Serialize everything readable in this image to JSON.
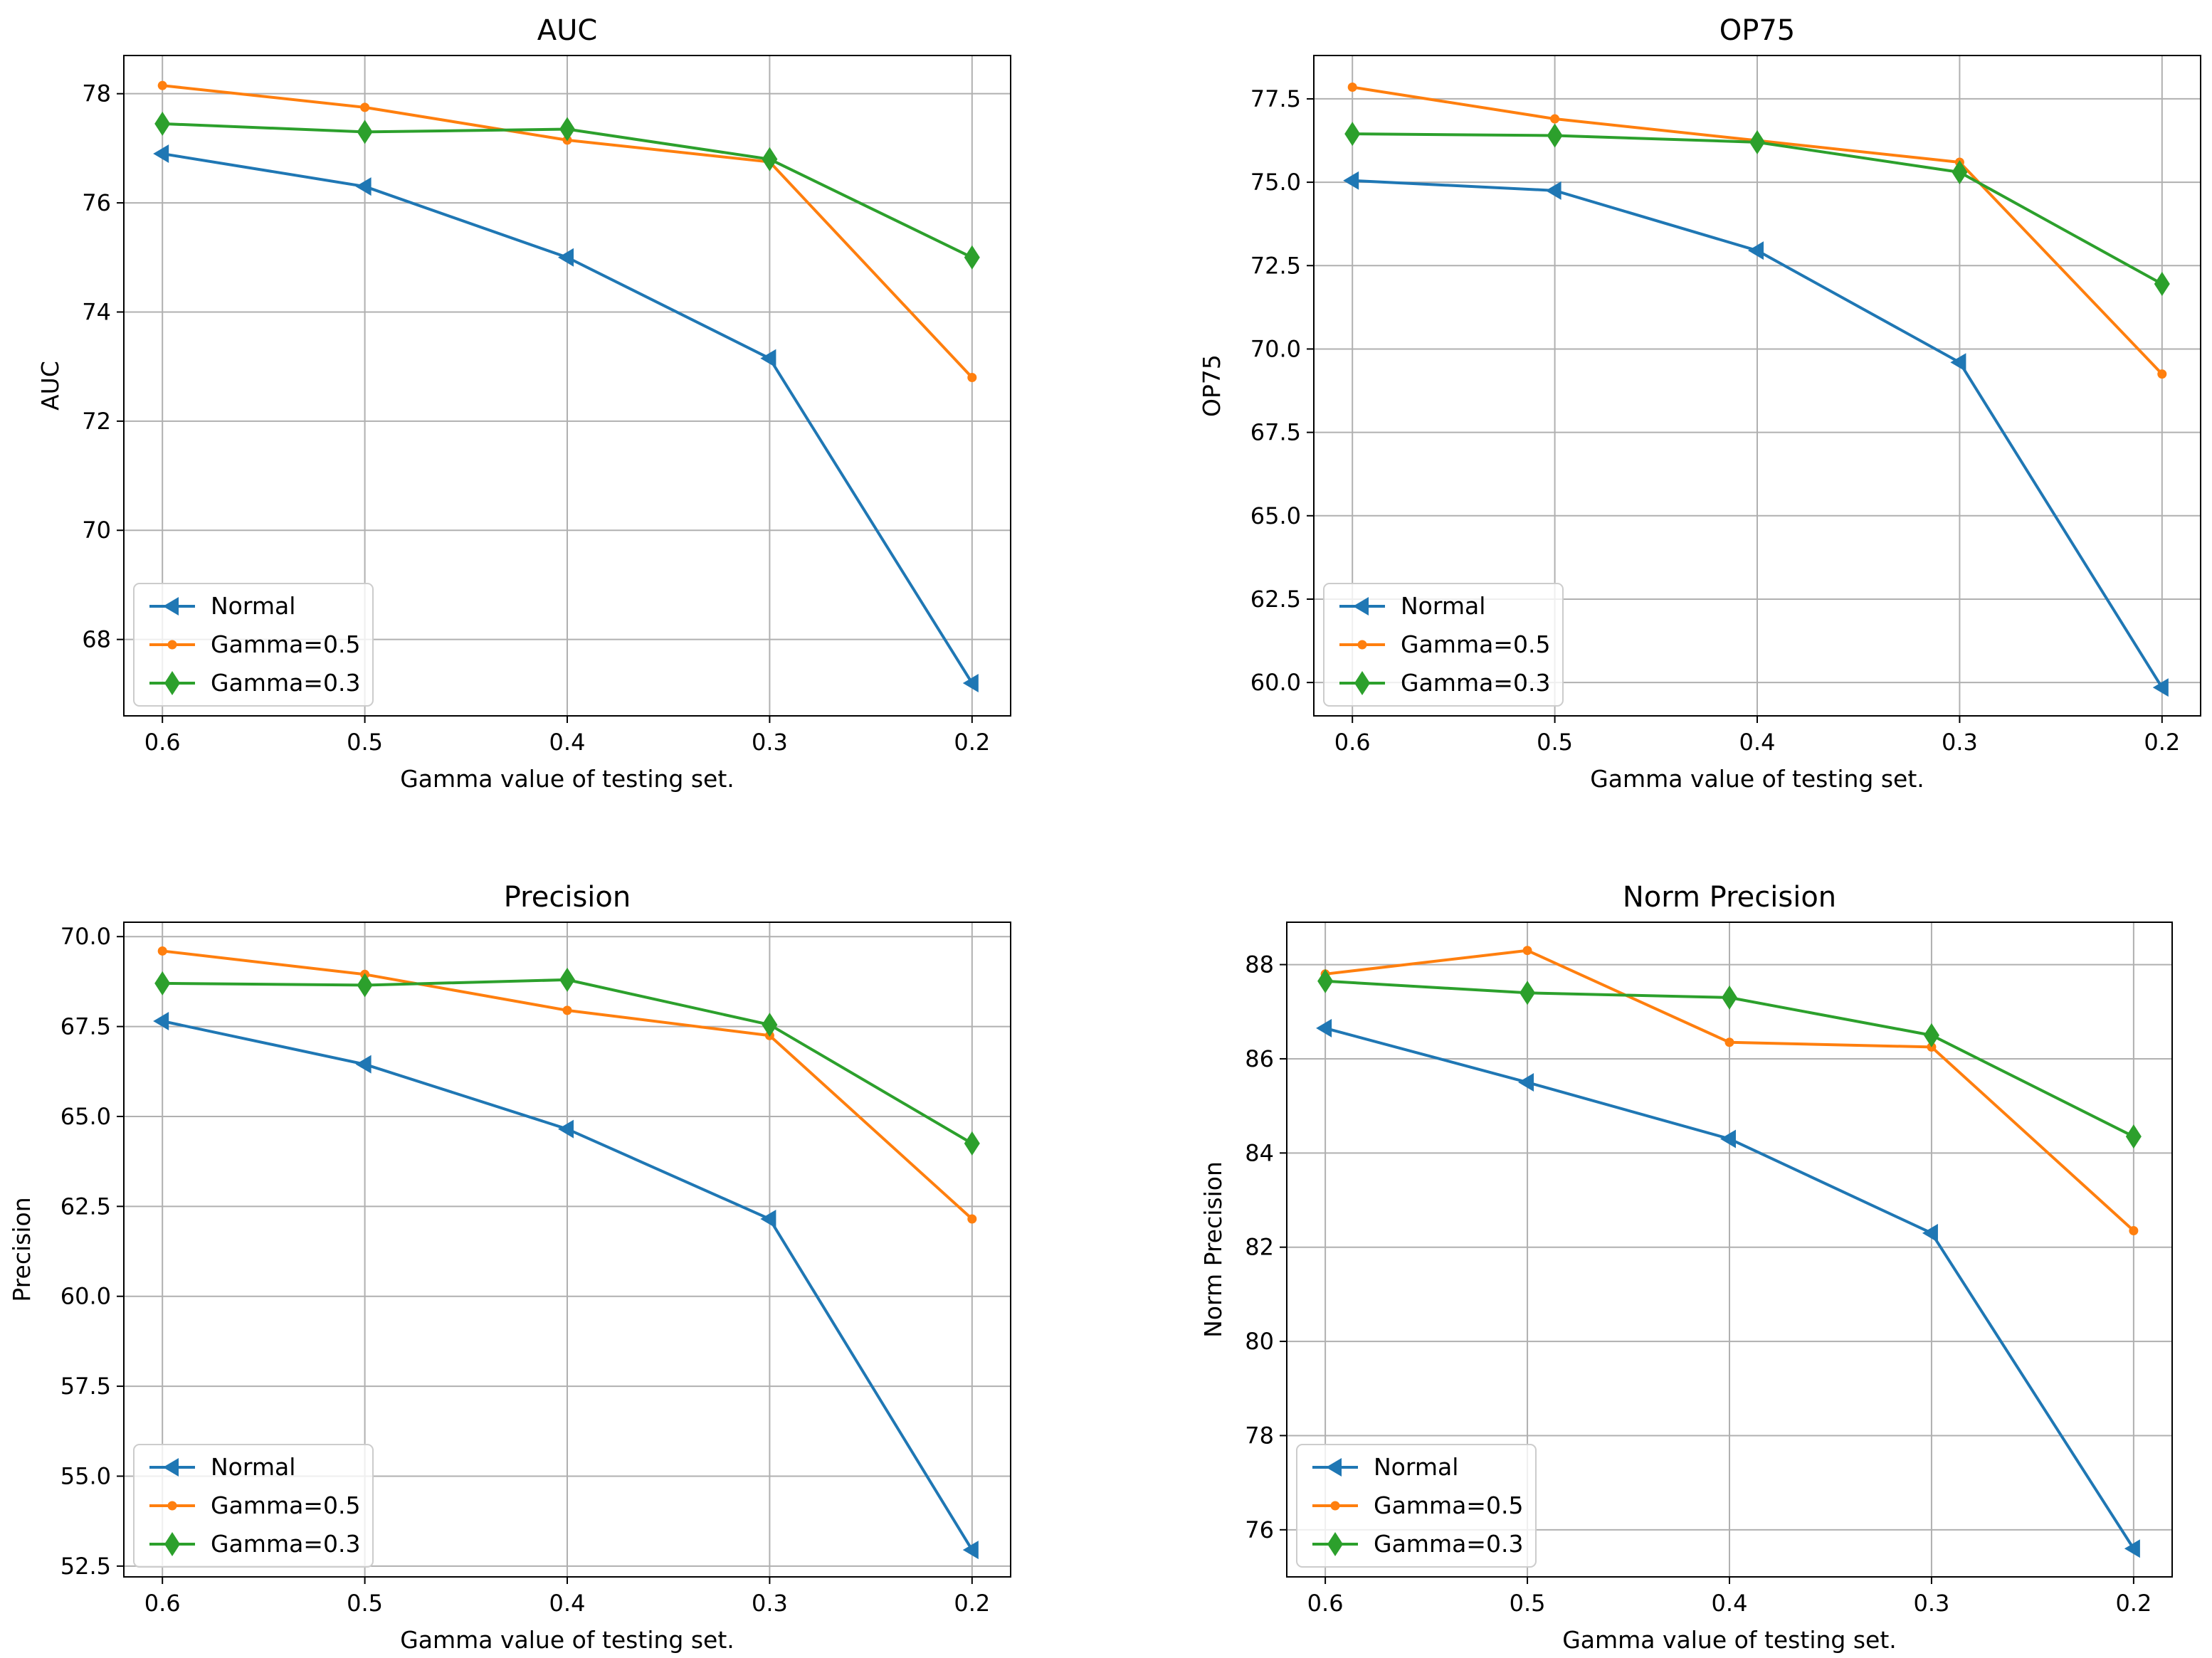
{
  "chart_data": [
    {
      "type": "line",
      "title": "AUC",
      "xlabel": "Gamma value of testing set.",
      "ylabel": "AUC",
      "categories": [
        "0.6",
        "0.5",
        "0.4",
        "0.3",
        "0.2"
      ],
      "ylim": [
        66.6,
        78.7
      ],
      "yticks": [
        68,
        70,
        72,
        74,
        76,
        78
      ],
      "yticklabels": [
        "68",
        "70",
        "72",
        "74",
        "76",
        "78"
      ],
      "grid": true,
      "legend_position": "lower-left",
      "series": [
        {
          "name": "Normal",
          "marker": "triangle-left",
          "color": "#1f77b4",
          "values": [
            76.9,
            76.3,
            75.0,
            73.15,
            67.2
          ]
        },
        {
          "name": "Gamma=0.5",
          "marker": "dot",
          "color": "#ff7f0e",
          "values": [
            78.15,
            77.75,
            77.15,
            76.75,
            72.8
          ]
        },
        {
          "name": "Gamma=0.3",
          "marker": "diamond",
          "color": "#2ca02c",
          "values": [
            77.45,
            77.3,
            77.35,
            76.8,
            75.0
          ]
        }
      ]
    },
    {
      "type": "line",
      "title": "OP75",
      "xlabel": "Gamma value of testing set.",
      "ylabel": "OP75",
      "categories": [
        "0.6",
        "0.5",
        "0.4",
        "0.3",
        "0.2"
      ],
      "ylim": [
        59.0,
        78.8
      ],
      "yticks": [
        60,
        62.5,
        65,
        67.5,
        70,
        72.5,
        75,
        77.5
      ],
      "yticklabels": [
        "60.0",
        "62.5",
        "65.0",
        "67.5",
        "70.0",
        "72.5",
        "75.0",
        "77.5"
      ],
      "grid": true,
      "legend_position": "lower-left",
      "series": [
        {
          "name": "Normal",
          "marker": "triangle-left",
          "color": "#1f77b4",
          "values": [
            75.05,
            74.75,
            72.95,
            69.6,
            59.85
          ]
        },
        {
          "name": "Gamma=0.5",
          "marker": "dot",
          "color": "#ff7f0e",
          "values": [
            77.85,
            76.9,
            76.25,
            75.6,
            69.25
          ]
        },
        {
          "name": "Gamma=0.3",
          "marker": "diamond",
          "color": "#2ca02c",
          "values": [
            76.45,
            76.4,
            76.2,
            75.3,
            71.95
          ]
        }
      ]
    },
    {
      "type": "line",
      "title": "Precision",
      "xlabel": "Gamma value of testing set.",
      "ylabel": "Precision",
      "categories": [
        "0.6",
        "0.5",
        "0.4",
        "0.3",
        "0.2"
      ],
      "ylim": [
        52.2,
        70.4
      ],
      "yticks": [
        52.5,
        55,
        57.5,
        60,
        62.5,
        65,
        67.5,
        70
      ],
      "yticklabels": [
        "52.5",
        "55.0",
        "57.5",
        "60.0",
        "62.5",
        "65.0",
        "67.5",
        "70.0"
      ],
      "grid": true,
      "legend_position": "lower-left",
      "series": [
        {
          "name": "Normal",
          "marker": "triangle-left",
          "color": "#1f77b4",
          "values": [
            67.65,
            66.45,
            64.65,
            62.15,
            52.95
          ]
        },
        {
          "name": "Gamma=0.5",
          "marker": "dot",
          "color": "#ff7f0e",
          "values": [
            69.6,
            68.95,
            67.95,
            67.25,
            62.15
          ]
        },
        {
          "name": "Gamma=0.3",
          "marker": "diamond",
          "color": "#2ca02c",
          "values": [
            68.7,
            68.65,
            68.8,
            67.55,
            64.25
          ]
        }
      ]
    },
    {
      "type": "line",
      "title": "Norm Precision",
      "xlabel": "Gamma value of testing set.",
      "ylabel": "Norm Precision",
      "categories": [
        "0.6",
        "0.5",
        "0.4",
        "0.3",
        "0.2"
      ],
      "ylim": [
        75.0,
        88.9
      ],
      "yticks": [
        76,
        78,
        80,
        82,
        84,
        86,
        88
      ],
      "yticklabels": [
        "76",
        "78",
        "80",
        "82",
        "84",
        "86",
        "88"
      ],
      "grid": true,
      "legend_position": "lower-left",
      "series": [
        {
          "name": "Normal",
          "marker": "triangle-left",
          "color": "#1f77b4",
          "values": [
            86.65,
            85.5,
            84.3,
            82.3,
            75.6
          ]
        },
        {
          "name": "Gamma=0.5",
          "marker": "dot",
          "color": "#ff7f0e",
          "values": [
            87.8,
            88.3,
            86.35,
            86.25,
            82.35
          ]
        },
        {
          "name": "Gamma=0.3",
          "marker": "diamond",
          "color": "#2ca02c",
          "values": [
            87.65,
            87.4,
            87.3,
            86.5,
            84.35
          ]
        }
      ]
    }
  ]
}
